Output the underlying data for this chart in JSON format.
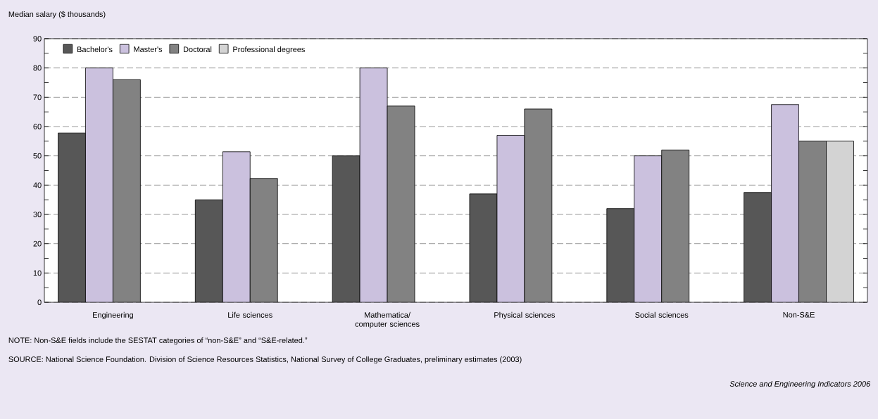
{
  "chart_data": {
    "type": "bar",
    "ylabel": "Median salary ($ thousands)",
    "categories": [
      "Engineering",
      "Life sciences",
      "Mathematica/ computer sciences",
      "Physical sciences",
      "Social sciences",
      "Non-S&E"
    ],
    "series": [
      {
        "name": "Bachelor's",
        "color": "#575757",
        "values": [
          57.8,
          35,
          50,
          37,
          32,
          37.5
        ]
      },
      {
        "name": "Master's",
        "color": "#cbc1de",
        "values": [
          80,
          51.4,
          80,
          57,
          50,
          67.5
        ]
      },
      {
        "name": "Doctoral",
        "color": "#828282",
        "values": [
          76,
          42.3,
          67,
          66,
          52,
          55
        ]
      },
      {
        "name": "Professional degrees",
        "color": "#d3d3d3",
        "values": [
          null,
          null,
          null,
          null,
          null,
          55
        ]
      }
    ],
    "ylim": [
      0,
      90
    ],
    "yticks": [
      0,
      10,
      20,
      30,
      40,
      50,
      60,
      70,
      80,
      90
    ],
    "grid": "y",
    "legend": "top left",
    "annotations": [
      "NOTE: Non-S&E fields include the SESTAT categories of “non-S&E” and “S&E-related.”",
      "SOURCE: National Science Foundation. Division of Science Resources Statistics, National Survey of College Graduates, preliminary estimates (2003)",
      "Science and Engineering Indicators 2006"
    ]
  }
}
